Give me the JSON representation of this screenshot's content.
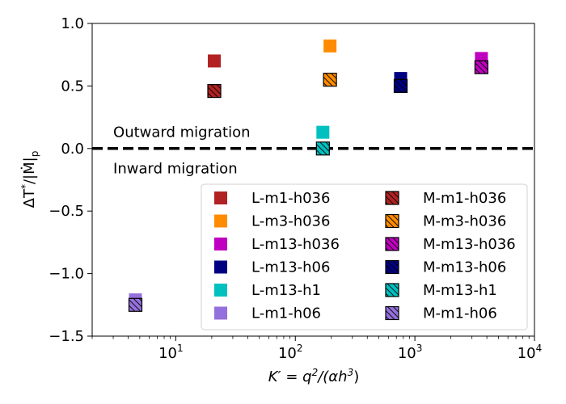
{
  "chart_data": {
    "type": "scatter",
    "xscale": "log",
    "xlim": [
      2,
      10000
    ],
    "ylim": [
      -1.5,
      1.0
    ],
    "xlabel_parts": {
      "lhs": "K′ = q",
      "exp1": "2",
      "mid": "/(αh",
      "exp2": "3",
      "end": ")"
    },
    "ylabel_parts": {
      "num": "ΔT",
      "star": "*",
      "den": "/|Ṁ|",
      "sub": "p"
    },
    "xticks": [
      {
        "value": 10,
        "base": "10",
        "exp": "1"
      },
      {
        "value": 100,
        "base": "10",
        "exp": "2"
      },
      {
        "value": 1000,
        "base": "10",
        "exp": "3"
      },
      {
        "value": 10000,
        "base": "10",
        "exp": "4"
      }
    ],
    "yticks": [
      {
        "value": 1.0,
        "label": "1.0"
      },
      {
        "value": 0.5,
        "label": "0.5"
      },
      {
        "value": 0.0,
        "label": "0.0"
      },
      {
        "value": -0.5,
        "label": "−0.5"
      },
      {
        "value": -1.0,
        "label": "−1.0"
      },
      {
        "value": -1.5,
        "label": "−1.5"
      }
    ],
    "reference_line": {
      "y": 0.0,
      "style": "dashed"
    },
    "annotations": [
      {
        "text": "Outward migration",
        "x": 3,
        "y": 0.13
      },
      {
        "text": "Inward migration",
        "x": 3,
        "y": -0.16
      }
    ],
    "series": [
      {
        "name": "L-m1-h036",
        "color": "#b22222",
        "hatched": false,
        "x": 21,
        "y": 0.7
      },
      {
        "name": "L-m3-h036",
        "color": "#ff8c00",
        "hatched": false,
        "x": 195,
        "y": 0.82
      },
      {
        "name": "L-m13-h036",
        "color": "#c000c0",
        "hatched": false,
        "x": 3600,
        "y": 0.72
      },
      {
        "name": "L-m13-h06",
        "color": "#000080",
        "hatched": false,
        "x": 760,
        "y": 0.56
      },
      {
        "name": "L-m13-h1",
        "color": "#00c0c0",
        "hatched": false,
        "x": 170,
        "y": 0.13
      },
      {
        "name": "L-m1-h06",
        "color": "#9370db",
        "hatched": false,
        "x": 4.6,
        "y": -1.21
      },
      {
        "name": "M-m1-h036",
        "color": "#b22222",
        "hatched": true,
        "x": 21,
        "y": 0.46
      },
      {
        "name": "M-m3-h036",
        "color": "#ff8c00",
        "hatched": true,
        "x": 195,
        "y": 0.55
      },
      {
        "name": "M-m13-h036",
        "color": "#c000c0",
        "hatched": true,
        "x": 3600,
        "y": 0.65
      },
      {
        "name": "M-m13-h06",
        "color": "#000080",
        "hatched": true,
        "x": 760,
        "y": 0.5
      },
      {
        "name": "M-m13-h1",
        "color": "#00c0c0",
        "hatched": true,
        "x": 170,
        "y": 0.0
      },
      {
        "name": "M-m1-h06",
        "color": "#9370db",
        "hatched": true,
        "x": 4.6,
        "y": -1.25
      }
    ],
    "legend": {
      "location": "lower-right",
      "columns": [
        [
          "L-m1-h036",
          "L-m3-h036",
          "L-m13-h036",
          "L-m13-h06",
          "L-m13-h1",
          "L-m1-h06"
        ],
        [
          "M-m1-h036",
          "M-m3-h036",
          "M-m13-h036",
          "M-m13-h06",
          "M-m13-h1",
          "M-m1-h06"
        ]
      ]
    }
  }
}
